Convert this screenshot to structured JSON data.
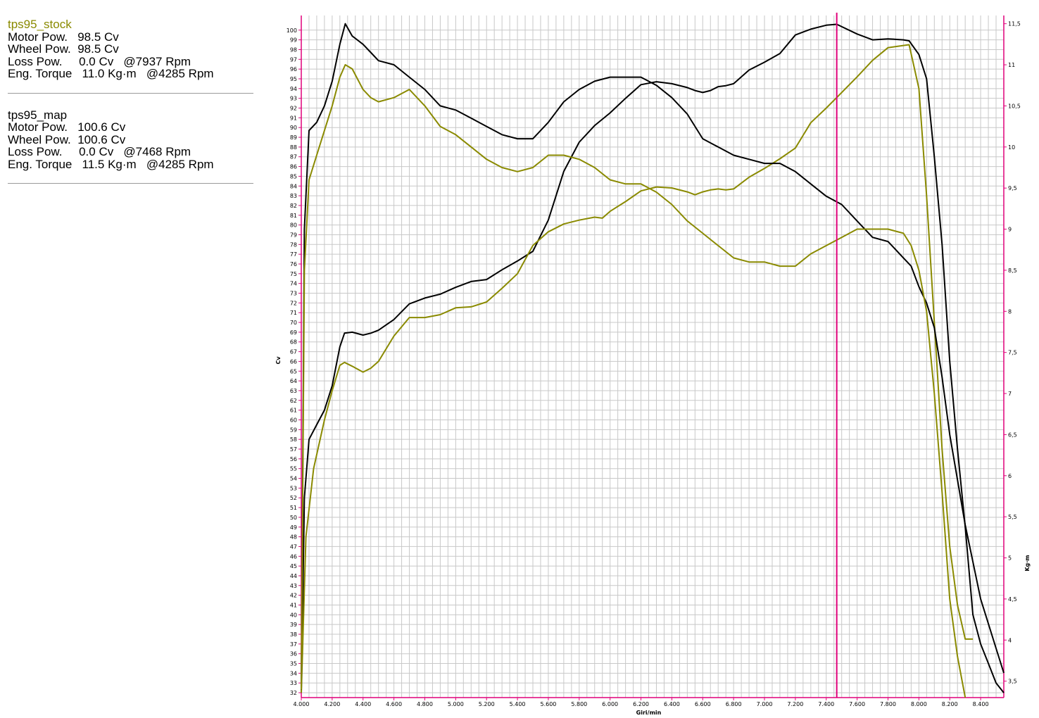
{
  "runs": [
    {
      "name": "tps95_stock",
      "color": "#8a8a00",
      "lines": [
        "Motor Pow.   98.5 Cv",
        "Wheel Pow.  98.5 Cv",
        "Loss Pow.     0.0 Cv   @7937 Rpm",
        "Eng. Torque   11.0 Kg·m   @4285 Rpm"
      ]
    },
    {
      "name": "tps95_map",
      "color": "#000000",
      "lines": [
        "Motor Pow.   100.6 Cv",
        "Wheel Pow.  100.6 Cv",
        "Loss Pow.     0.0 Cv   @7468 Rpm",
        "Eng. Torque   11.5 Kg·m   @4285 Rpm"
      ]
    }
  ],
  "chart_data": {
    "type": "line",
    "xlabel": "Giri/min",
    "ylabel_left": "Cv",
    "ylabel_right": "Kg·m",
    "xlim": [
      4000,
      8550
    ],
    "ylim_left": [
      31.5,
      101.5
    ],
    "ylim_right": [
      3.3,
      11.6
    ],
    "x_ticks": [
      4000,
      4200,
      4400,
      4600,
      4800,
      5000,
      5200,
      5400,
      5600,
      5800,
      6000,
      6200,
      6400,
      6600,
      6800,
      7000,
      7200,
      7400,
      7600,
      7800,
      8000,
      8200,
      8400
    ],
    "x_tick_labels": [
      "4.000",
      "4.200",
      "4.400",
      "4.600",
      "4.800",
      "5.000",
      "5.200",
      "5.400",
      "5.600",
      "5.800",
      "6.000",
      "6.200",
      "6.400",
      "6.600",
      "6.800",
      "7.000",
      "7.200",
      "7.400",
      "7.600",
      "7.800",
      "8.000",
      "8.200",
      "8.400"
    ],
    "y_left_ticks": [
      32,
      33,
      34,
      35,
      36,
      37,
      38,
      39,
      40,
      41,
      42,
      43,
      44,
      45,
      46,
      47,
      48,
      49,
      50,
      51,
      52,
      53,
      54,
      55,
      56,
      57,
      58,
      59,
      60,
      61,
      62,
      63,
      64,
      65,
      66,
      67,
      68,
      69,
      70,
      71,
      72,
      73,
      74,
      75,
      76,
      77,
      78,
      79,
      80,
      81,
      82,
      83,
      84,
      85,
      86,
      87,
      88,
      89,
      90,
      91,
      92,
      93,
      94,
      95,
      96,
      97,
      98,
      99,
      100
    ],
    "y_right_ticks": [
      3.5,
      4,
      4.5,
      5,
      5.5,
      6,
      6.5,
      7,
      7.5,
      8,
      8.5,
      9,
      9.5,
      10,
      10.5,
      11,
      11.5
    ],
    "y_right_tick_labels": [
      "3,5",
      "4",
      "4,5",
      "5",
      "5,5",
      "6",
      "6,5",
      "7",
      "7,5",
      "8",
      "8,5",
      "9",
      "9,5",
      "10",
      "10,5",
      "11",
      "11,5"
    ],
    "cursor_rpm": 7468,
    "grid": true,
    "series": [
      {
        "name": "tps95_map",
        "kind": "power",
        "axis": "left",
        "color": "#000000",
        "x": [
          4000,
          4020,
          4050,
          4100,
          4150,
          4200,
          4250,
          4280,
          4330,
          4400,
          4450,
          4500,
          4600,
          4700,
          4800,
          4900,
          5000,
          5100,
          5200,
          5300,
          5400,
          5500,
          5600,
          5700,
          5800,
          5900,
          6000,
          6100,
          6200,
          6300,
          6400,
          6500,
          6550,
          6600,
          6650,
          6700,
          6750,
          6800,
          6900,
          7000,
          7100,
          7200,
          7300,
          7400,
          7468,
          7600,
          7700,
          7800,
          7900,
          7937,
          8000,
          8050,
          8100,
          8150,
          8200,
          8250,
          8300,
          8350,
          8400,
          8450,
          8500,
          8550
        ],
        "y": [
          32,
          52,
          58,
          59.5,
          61,
          63.5,
          67.5,
          68.9,
          69,
          68.7,
          68.9,
          69.2,
          70.3,
          71.9,
          72.5,
          72.9,
          73.6,
          74.2,
          74.4,
          75.4,
          76.3,
          77.3,
          80.5,
          85.5,
          88.5,
          90.2,
          91.5,
          93,
          94.4,
          94.7,
          94.5,
          94.1,
          93.8,
          93.6,
          93.8,
          94.2,
          94.3,
          94.5,
          95.9,
          96.7,
          97.6,
          99.5,
          100.1,
          100.5,
          100.6,
          99.6,
          99,
          99.1,
          99,
          98.9,
          97.5,
          95,
          87,
          78,
          66,
          57,
          49,
          40,
          37,
          35,
          33,
          32
        ]
      },
      {
        "name": "tps95_stock",
        "kind": "power",
        "axis": "left",
        "color": "#8a8a00",
        "x": [
          4000,
          4030,
          4080,
          4150,
          4200,
          4250,
          4280,
          4330,
          4400,
          4450,
          4500,
          4600,
          4700,
          4800,
          4900,
          5000,
          5100,
          5200,
          5300,
          5400,
          5500,
          5600,
          5700,
          5800,
          5900,
          5950,
          6000,
          6100,
          6200,
          6300,
          6400,
          6500,
          6550,
          6600,
          6650,
          6700,
          6750,
          6800,
          6900,
          7000,
          7100,
          7200,
          7300,
          7400,
          7500,
          7600,
          7700,
          7800,
          7937,
          8000,
          8050,
          8100,
          8150,
          8200,
          8250,
          8300,
          8350
        ],
        "y": [
          32,
          48,
          55,
          60,
          63,
          65.6,
          65.9,
          65.5,
          64.9,
          65.3,
          66,
          68.6,
          70.5,
          70.5,
          70.8,
          71.5,
          71.6,
          72.1,
          73.5,
          75,
          77.9,
          79.3,
          80.1,
          80.5,
          80.8,
          80.7,
          81.4,
          82.4,
          83.5,
          83.9,
          83.8,
          83.4,
          83.1,
          83.4,
          83.6,
          83.7,
          83.6,
          83.7,
          84.9,
          85.8,
          86.8,
          87.9,
          90.5,
          92,
          93.6,
          95.2,
          96.9,
          98.2,
          98.5,
          94,
          83,
          70,
          57,
          47,
          41,
          37.5,
          37.5
        ]
      },
      {
        "name": "tps95_map",
        "kind": "torque",
        "axis": "right",
        "color": "#000000",
        "x": [
          4000,
          4020,
          4050,
          4100,
          4150,
          4200,
          4250,
          4285,
          4330,
          4400,
          4450,
          4500,
          4600,
          4700,
          4800,
          4900,
          5000,
          5100,
          5200,
          5300,
          5400,
          5500,
          5600,
          5700,
          5800,
          5900,
          6000,
          6100,
          6200,
          6300,
          6400,
          6500,
          6600,
          6700,
          6800,
          6900,
          7000,
          7100,
          7200,
          7300,
          7400,
          7500,
          7600,
          7700,
          7800,
          7900,
          7950,
          8000,
          8050,
          8100,
          8150,
          8200,
          8300,
          8400,
          8500,
          8550
        ],
        "y": [
          3.4,
          9,
          10.2,
          10.3,
          10.5,
          10.8,
          11.25,
          11.5,
          11.35,
          11.25,
          11.15,
          11.05,
          11,
          10.85,
          10.7,
          10.5,
          10.45,
          10.35,
          10.25,
          10.15,
          10.1,
          10.1,
          10.3,
          10.55,
          10.7,
          10.8,
          10.85,
          10.85,
          10.85,
          10.75,
          10.6,
          10.4,
          10.1,
          10,
          9.9,
          9.85,
          9.8,
          9.8,
          9.7,
          9.55,
          9.4,
          9.3,
          9.1,
          8.9,
          8.85,
          8.65,
          8.55,
          8.3,
          8.1,
          7.8,
          7.2,
          6.5,
          5.4,
          4.5,
          3.9,
          3.6
        ]
      },
      {
        "name": "tps95_stock",
        "kind": "torque",
        "axis": "right",
        "color": "#8a8a00",
        "x": [
          4000,
          4020,
          4050,
          4100,
          4150,
          4200,
          4250,
          4285,
          4330,
          4400,
          4450,
          4500,
          4600,
          4700,
          4800,
          4900,
          5000,
          5100,
          5200,
          5300,
          5400,
          5500,
          5600,
          5700,
          5800,
          5900,
          6000,
          6100,
          6200,
          6300,
          6400,
          6500,
          6600,
          6700,
          6800,
          6900,
          7000,
          7100,
          7200,
          7300,
          7400,
          7500,
          7600,
          7700,
          7800,
          7900,
          7950,
          8000,
          8050,
          8100,
          8150,
          8200,
          8250,
          8300
        ],
        "y": [
          3.4,
          8.5,
          9.6,
          9.9,
          10.2,
          10.5,
          10.85,
          11,
          10.95,
          10.7,
          10.6,
          10.55,
          10.6,
          10.7,
          10.5,
          10.25,
          10.15,
          10.0,
          9.85,
          9.75,
          9.7,
          9.75,
          9.9,
          9.9,
          9.85,
          9.75,
          9.6,
          9.55,
          9.55,
          9.45,
          9.3,
          9.1,
          8.95,
          8.8,
          8.65,
          8.6,
          8.6,
          8.55,
          8.55,
          8.7,
          8.8,
          8.9,
          9,
          9,
          9,
          8.95,
          8.8,
          8.5,
          8,
          7,
          5.8,
          4.5,
          3.8,
          3.3
        ]
      }
    ]
  }
}
